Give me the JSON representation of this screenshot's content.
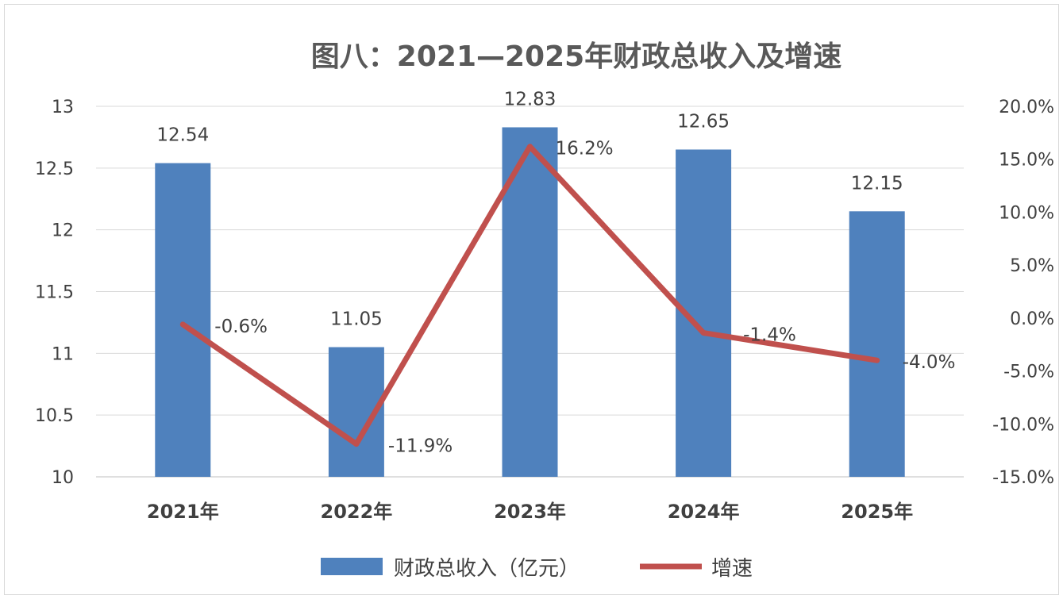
{
  "chart_data": {
    "type": "bar",
    "title": "图八：2021—2025年财政总收入及增速",
    "categories": [
      "2021年",
      "2022年",
      "2023年",
      "2024年",
      "2025年"
    ],
    "series": [
      {
        "name": "财政总收入（亿元）",
        "type": "bar",
        "axis": "left",
        "values": [
          12.54,
          11.05,
          12.83,
          12.65,
          12.15
        ],
        "labels": [
          "12.54",
          "11.05",
          "12.83",
          "12.65",
          "12.15"
        ],
        "color": "#4f81bd"
      },
      {
        "name": "增速",
        "type": "line",
        "axis": "right",
        "values": [
          -0.6,
          -11.9,
          16.2,
          -1.4,
          -4.0
        ],
        "labels": [
          "-0.6%",
          "-11.9%",
          "16.2%",
          "-1.4%",
          "-4.0%"
        ],
        "color": "#c0504d"
      }
    ],
    "y_left": {
      "range": [
        10,
        13
      ],
      "ticks": [
        10,
        10.5,
        11,
        11.5,
        12,
        12.5,
        13
      ],
      "tick_labels": [
        "10",
        "10.5",
        "11",
        "11.5",
        "12",
        "12.5",
        "13"
      ]
    },
    "y_right": {
      "range": [
        -15,
        20
      ],
      "ticks": [
        -15,
        -10,
        -5,
        0,
        5,
        10,
        15,
        20
      ],
      "tick_labels": [
        "-15.0%",
        "-10.0%",
        "-5.0%",
        "0.0%",
        "5.0%",
        "10.0%",
        "15.0%",
        "20.0%"
      ]
    },
    "grid": true,
    "legend_position": "bottom"
  }
}
